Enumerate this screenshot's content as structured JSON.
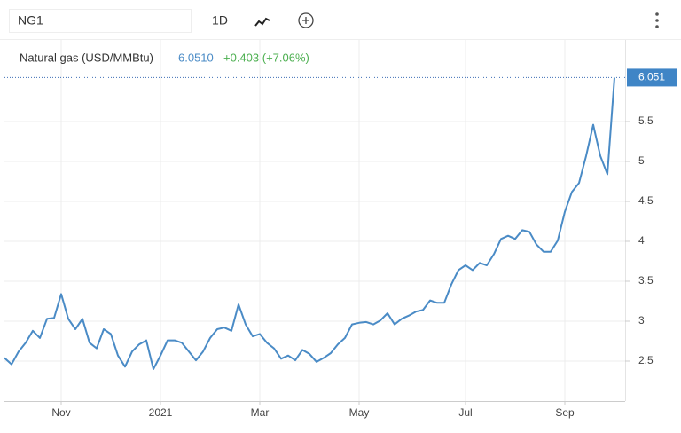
{
  "toolbar": {
    "symbol": "NG1",
    "interval": "1D"
  },
  "chart_data": {
    "type": "line",
    "title": "Natural gas (USD/MMBtu)",
    "price": "6.0510",
    "change": "+0.403 (+7.06%)",
    "color": "#4a8bc6",
    "categories": [
      null,
      null,
      null,
      null,
      null,
      null,
      null,
      null,
      "Nov",
      null,
      null,
      null,
      null,
      null,
      null,
      null,
      null,
      null,
      null,
      null,
      null,
      null,
      "2021",
      null,
      null,
      null,
      null,
      null,
      null,
      null,
      null,
      null,
      null,
      null,
      null,
      null,
      "Mar",
      null,
      null,
      null,
      null,
      null,
      null,
      null,
      null,
      null,
      null,
      null,
      null,
      null,
      "May",
      null,
      null,
      null,
      null,
      null,
      null,
      null,
      null,
      null,
      null,
      null,
      null,
      null,
      null,
      "Jul",
      null,
      null,
      null,
      null,
      null,
      null,
      null,
      null,
      null,
      null,
      null,
      null,
      null,
      "Sep",
      null,
      null,
      null,
      null,
      null,
      null,
      null
    ],
    "values": [
      2.54,
      2.46,
      2.62,
      2.73,
      2.88,
      2.79,
      3.03,
      3.04,
      3.34,
      3.03,
      2.9,
      3.03,
      2.73,
      2.66,
      2.9,
      2.84,
      2.57,
      2.43,
      2.62,
      2.71,
      2.76,
      2.4,
      2.57,
      2.76,
      2.76,
      2.73,
      2.62,
      2.51,
      2.62,
      2.79,
      2.9,
      2.92,
      2.88,
      3.21,
      2.96,
      2.81,
      2.84,
      2.73,
      2.66,
      2.53,
      2.57,
      2.51,
      2.64,
      2.59,
      2.49,
      2.54,
      2.6,
      2.71,
      2.79,
      2.96,
      2.98,
      2.99,
      2.96,
      3.01,
      3.1,
      2.96,
      3.03,
      3.07,
      3.12,
      3.14,
      3.26,
      3.23,
      3.23,
      3.46,
      3.64,
      3.7,
      3.64,
      3.73,
      3.7,
      3.84,
      4.03,
      4.07,
      4.03,
      4.14,
      4.12,
      3.96,
      3.87,
      3.87,
      4.01,
      4.37,
      4.62,
      4.73,
      5.07,
      5.46,
      5.07,
      4.84,
      6.051
    ],
    "ylim": [
      2,
      6.5
    ],
    "yticks": [
      2.5,
      3,
      3.5,
      4,
      4.5,
      5,
      5.5
    ],
    "grid": true
  }
}
